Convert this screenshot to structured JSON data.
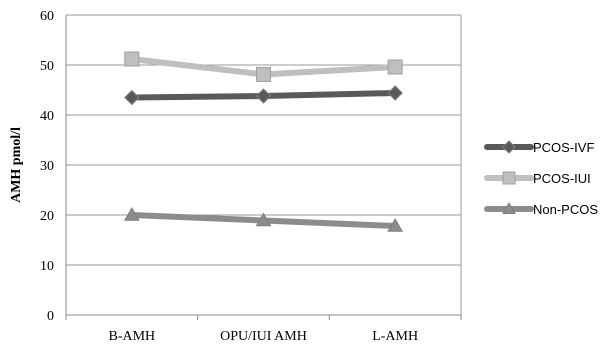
{
  "chart_data": {
    "type": "line",
    "title": "",
    "xlabel": "",
    "ylabel": "AMH pmol/l",
    "categories": [
      "B-AMH",
      "OPU/IUI AMH",
      "L-AMH"
    ],
    "ylim": [
      0,
      60
    ],
    "yticks": [
      "0",
      "10",
      "20",
      "30",
      "40",
      "50",
      "60"
    ],
    "grid": true,
    "legend_position": "right",
    "series": [
      {
        "name": "PCOS-IVF",
        "values": [
          43.5,
          43.8,
          44.4
        ],
        "color": "#595959",
        "marker": "diamond"
      },
      {
        "name": "PCOS-IUI",
        "values": [
          51.2,
          48.1,
          49.6
        ],
        "color": "#bfbfbf",
        "marker": "square"
      },
      {
        "name": "Non-PCOS",
        "values": [
          20.0,
          18.9,
          17.8
        ],
        "color": "#8c8c8c",
        "marker": "triangle"
      }
    ]
  }
}
